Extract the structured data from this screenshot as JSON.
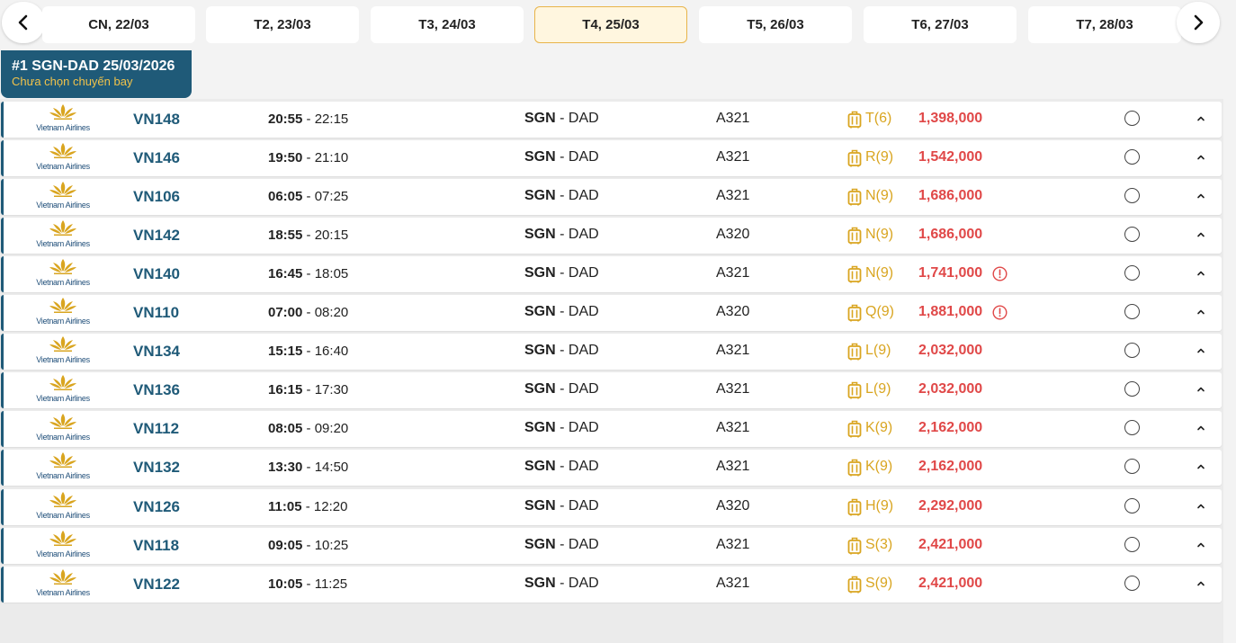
{
  "date_nav": {
    "tabs": [
      {
        "label": "CN, 22/03"
      },
      {
        "label": "T2, 23/03"
      },
      {
        "label": "T3, 24/03"
      },
      {
        "label": "T4, 25/03"
      },
      {
        "label": "T5, 26/03"
      },
      {
        "label": "T6, 27/03"
      },
      {
        "label": "T7, 28/03"
      }
    ],
    "active_index": 3
  },
  "trip": {
    "title": "#1 SGN-DAD 25/03/2026",
    "status": "Chưa chọn chuyến bay"
  },
  "colors": {
    "primary": "#1f5a78",
    "price": "#e04848",
    "fare_class": "#d9a520",
    "active_tab_bg": "#fff6df",
    "active_tab_border": "#e8b44a"
  },
  "airline_logo_text": "Vietnam Airlines",
  "flights": [
    {
      "flight_no": "VN148",
      "dep": "20:55",
      "arr": "22:15",
      "from": "SGN",
      "to": "DAD",
      "aircraft": "A321",
      "fare_class": "T(6)",
      "price": "1,398,000",
      "warning": false
    },
    {
      "flight_no": "VN146",
      "dep": "19:50",
      "arr": "21:10",
      "from": "SGN",
      "to": "DAD",
      "aircraft": "A321",
      "fare_class": "R(9)",
      "price": "1,542,000",
      "warning": false
    },
    {
      "flight_no": "VN106",
      "dep": "06:05",
      "arr": "07:25",
      "from": "SGN",
      "to": "DAD",
      "aircraft": "A321",
      "fare_class": "N(9)",
      "price": "1,686,000",
      "warning": false
    },
    {
      "flight_no": "VN142",
      "dep": "18:55",
      "arr": "20:15",
      "from": "SGN",
      "to": "DAD",
      "aircraft": "A320",
      "fare_class": "N(9)",
      "price": "1,686,000",
      "warning": false
    },
    {
      "flight_no": "VN140",
      "dep": "16:45",
      "arr": "18:05",
      "from": "SGN",
      "to": "DAD",
      "aircraft": "A321",
      "fare_class": "N(9)",
      "price": "1,741,000",
      "warning": true
    },
    {
      "flight_no": "VN110",
      "dep": "07:00",
      "arr": "08:20",
      "from": "SGN",
      "to": "DAD",
      "aircraft": "A320",
      "fare_class": "Q(9)",
      "price": "1,881,000",
      "warning": true
    },
    {
      "flight_no": "VN134",
      "dep": "15:15",
      "arr": "16:40",
      "from": "SGN",
      "to": "DAD",
      "aircraft": "A321",
      "fare_class": "L(9)",
      "price": "2,032,000",
      "warning": false
    },
    {
      "flight_no": "VN136",
      "dep": "16:15",
      "arr": "17:30",
      "from": "SGN",
      "to": "DAD",
      "aircraft": "A321",
      "fare_class": "L(9)",
      "price": "2,032,000",
      "warning": false
    },
    {
      "flight_no": "VN112",
      "dep": "08:05",
      "arr": "09:20",
      "from": "SGN",
      "to": "DAD",
      "aircraft": "A321",
      "fare_class": "K(9)",
      "price": "2,162,000",
      "warning": false
    },
    {
      "flight_no": "VN132",
      "dep": "13:30",
      "arr": "14:50",
      "from": "SGN",
      "to": "DAD",
      "aircraft": "A321",
      "fare_class": "K(9)",
      "price": "2,162,000",
      "warning": false
    },
    {
      "flight_no": "VN126",
      "dep": "11:05",
      "arr": "12:20",
      "from": "SGN",
      "to": "DAD",
      "aircraft": "A320",
      "fare_class": "H(9)",
      "price": "2,292,000",
      "warning": false
    },
    {
      "flight_no": "VN118",
      "dep": "09:05",
      "arr": "10:25",
      "from": "SGN",
      "to": "DAD",
      "aircraft": "A321",
      "fare_class": "S(3)",
      "price": "2,421,000",
      "warning": false
    },
    {
      "flight_no": "VN122",
      "dep": "10:05",
      "arr": "11:25",
      "from": "SGN",
      "to": "DAD",
      "aircraft": "A321",
      "fare_class": "S(9)",
      "price": "2,421,000",
      "warning": false
    }
  ]
}
